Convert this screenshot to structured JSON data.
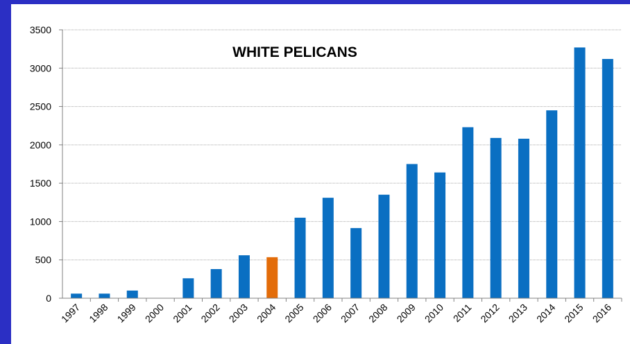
{
  "chart_data": {
    "type": "bar",
    "title": "WHITE PELICANS",
    "xlabel": "",
    "ylabel": "",
    "categories": [
      "1997",
      "1998",
      "1999",
      "2000",
      "2001",
      "2002",
      "2003",
      "2004",
      "2005",
      "2006",
      "2007",
      "2008",
      "2009",
      "2010",
      "2011",
      "2012",
      "2013",
      "2014",
      "2015",
      "2016"
    ],
    "values": [
      60,
      60,
      100,
      0,
      260,
      380,
      560,
      535,
      1050,
      1310,
      915,
      1350,
      1750,
      1640,
      2230,
      2090,
      2080,
      2450,
      3270,
      3120
    ],
    "ylim": [
      0,
      3500
    ],
    "yticks": [
      0,
      500,
      1000,
      1500,
      2000,
      2500,
      3000,
      3500
    ],
    "grid": true,
    "bar_color": "#0a6fc2",
    "highlight_color": "#e36c09",
    "highlight_category": "2004",
    "background_color": "#2b2fc4"
  }
}
